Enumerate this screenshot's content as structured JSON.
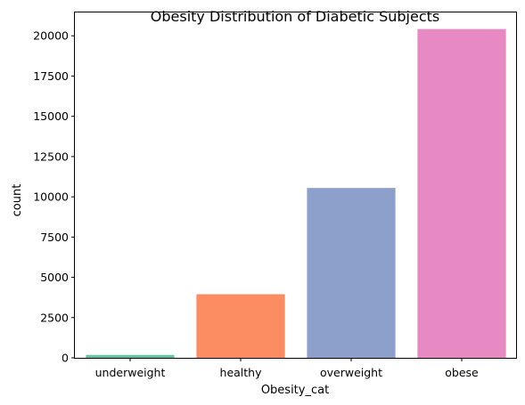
{
  "chart_data": {
    "type": "bar",
    "title": "Obesity Distribution of Diabetic Subjects",
    "xlabel": "Obesity_cat",
    "ylabel": "count",
    "categories": [
      "underweight",
      "healthy",
      "overweight",
      "obese"
    ],
    "values": [
      180,
      3950,
      10550,
      20420
    ],
    "colors": [
      "#66c2a5",
      "#fc8d62",
      "#8da0cb",
      "#e78ac3"
    ],
    "ylim": [
      0,
      21450
    ],
    "yticks": [
      0,
      2500,
      5000,
      7500,
      10000,
      12500,
      15000,
      17500,
      20000
    ],
    "grid": false,
    "legend": "none"
  }
}
